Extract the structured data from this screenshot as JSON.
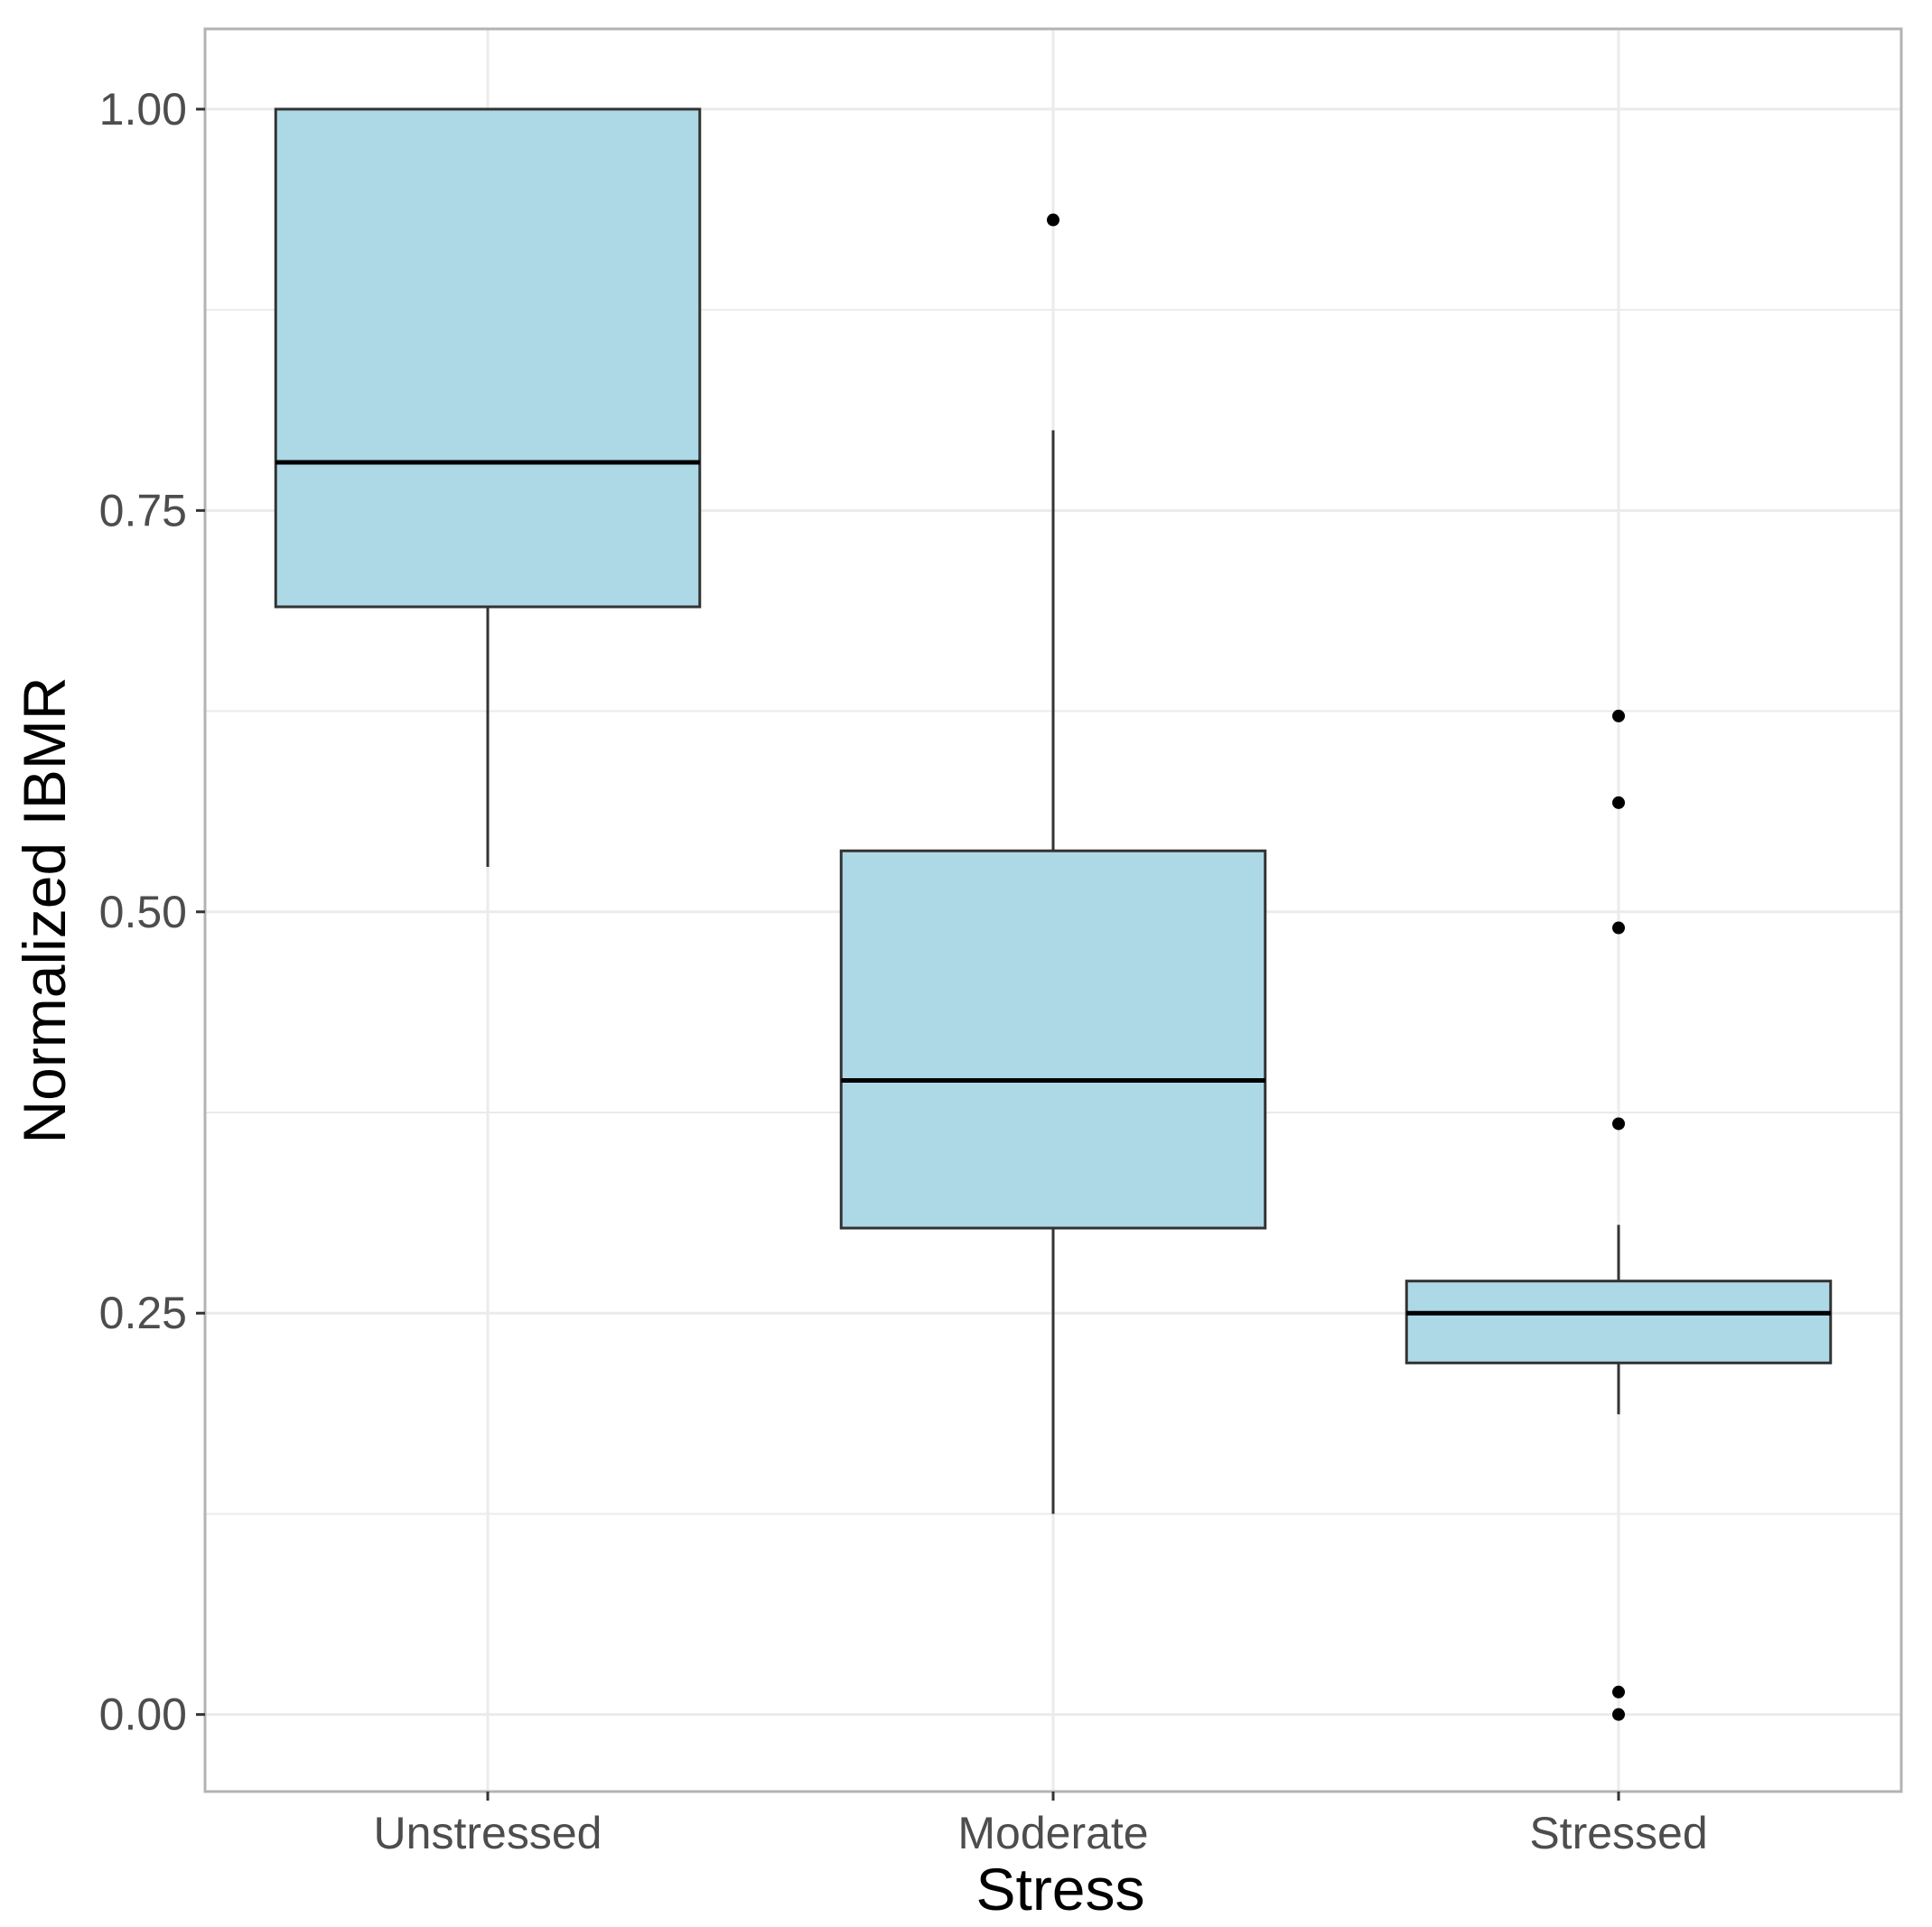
{
  "chart_data": {
    "type": "box",
    "title": "",
    "xlabel": "Stress",
    "ylabel": "Normalized IBMR",
    "ylim": [
      -0.048,
      1.05
    ],
    "yticks": [
      0.0,
      0.25,
      0.5,
      0.75,
      1.0
    ],
    "ytick_labels": [
      "0.00",
      "0.25",
      "0.50",
      "0.75",
      "1.00"
    ],
    "minor_yticks": [
      0.125,
      0.375,
      0.625,
      0.875
    ],
    "grid": true,
    "legend": "none",
    "categories": [
      "Unstressed",
      "Moderate",
      "Stressed"
    ],
    "boxes": [
      {
        "category": "Unstressed",
        "whisker_low": 0.528,
        "q1": 0.69,
        "median": 0.78,
        "q3": 1.0,
        "whisker_high": 1.0,
        "outliers": []
      },
      {
        "category": "Moderate",
        "whisker_low": 0.125,
        "q1": 0.303,
        "median": 0.395,
        "q3": 0.538,
        "whisker_high": 0.8,
        "outliers": [
          0.931
        ]
      },
      {
        "category": "Stressed",
        "whisker_low": 0.187,
        "q1": 0.219,
        "median": 0.25,
        "q3": 0.27,
        "whisker_high": 0.305,
        "outliers": [
          0.622,
          0.568,
          0.49,
          0.368,
          0.014,
          0.0
        ]
      }
    ],
    "colors": {
      "box_fill": "#add8e6",
      "box_stroke": "#333333",
      "median": "#000000",
      "whisker": "#333333",
      "outlier": "#000000",
      "grid": "#ebebeb",
      "panel_border": "#b3b3b3"
    }
  }
}
